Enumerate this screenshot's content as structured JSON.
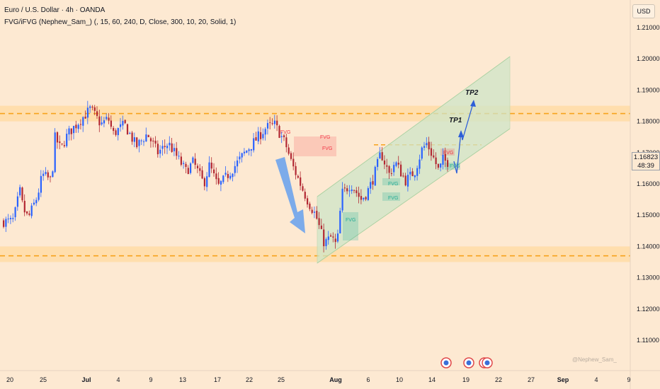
{
  "header": {
    "title": "Euro / U.S. Dollar · 4h · OANDA",
    "indicator": "FVG/iFVG (Nephew_Sam_) (, 15, 60, 240, D, Close, 300, 10, 20, Solid, 1)"
  },
  "currency_button": "USD",
  "price_label": {
    "price": "1.16823",
    "countdown": "48:39"
  },
  "watermark": "@Nephew_Sam_",
  "price_axis": {
    "ticks": [
      "1.21000",
      "1.20000",
      "1.19000",
      "1.18000",
      "1.17000",
      "1.16000",
      "1.15000",
      "1.14000",
      "1.13000",
      "1.12000",
      "1.11000"
    ],
    "values": [
      1.21,
      1.2,
      1.19,
      1.18,
      1.17,
      1.16,
      1.15,
      1.14,
      1.13,
      1.12,
      1.11
    ]
  },
  "time_axis": {
    "labels": [
      "20",
      "25",
      "Jul",
      "4",
      "9",
      "13",
      "17",
      "22",
      "25",
      "Aug",
      "6",
      "10",
      "14",
      "19",
      "22",
      "27",
      "Sep",
      "4",
      "9"
    ]
  },
  "annotations": {
    "fvg_label": "FVG",
    "tp1": "TP1",
    "tp2": "TP2"
  },
  "colors": {
    "background": "#fde9d2",
    "bull_candle": "#2962ff",
    "bear_candle": "#b22833",
    "zone": "#ffd9a0",
    "zone_line": "#f7a21b",
    "channel": "#cfe6c8",
    "fvg_bull": "#22ab94",
    "fvg_bear": "#f23645",
    "arrow": "#5b9bf0"
  },
  "chart_data": {
    "type": "candlestick",
    "symbol": "Euro / U.S. Dollar",
    "timeframe": "4h",
    "y_range": [
      1.105,
      1.215
    ],
    "path": [
      [
        1.148,
        20
      ],
      [
        1.152,
        25
      ],
      [
        1.158,
        30
      ],
      [
        1.152,
        35
      ],
      [
        1.149,
        42
      ],
      [
        1.156,
        55
      ],
      [
        1.163,
        62
      ],
      [
        1.161,
        75
      ],
      [
        1.175,
        80
      ],
      [
        1.171,
        88
      ],
      [
        1.176,
        98
      ],
      [
        1.182,
        122
      ],
      [
        1.184,
        130
      ],
      [
        1.179,
        145
      ],
      [
        1.181,
        155
      ],
      [
        1.176,
        162
      ],
      [
        1.179,
        178
      ],
      [
        1.172,
        195
      ],
      [
        1.176,
        210
      ],
      [
        1.17,
        225
      ],
      [
        1.173,
        240
      ],
      [
        1.164,
        265
      ],
      [
        1.167,
        275
      ],
      [
        1.16,
        290
      ],
      [
        1.166,
        298
      ],
      [
        1.159,
        310
      ],
      [
        1.164,
        328
      ],
      [
        1.17,
        348
      ],
      [
        1.178,
        378
      ],
      [
        1.179,
        390
      ],
      [
        1.173,
        405
      ],
      [
        1.166,
        415
      ],
      [
        1.157,
        432
      ],
      [
        1.154,
        438
      ],
      [
        1.15,
        448
      ],
      [
        1.141,
        460
      ],
      [
        1.143,
        470
      ],
      [
        1.14,
        478
      ],
      [
        1.157,
        485
      ],
      [
        1.16,
        498
      ],
      [
        1.155,
        512
      ],
      [
        1.157,
        520
      ],
      [
        1.161,
        528
      ],
      [
        1.166,
        535
      ],
      [
        1.17,
        540
      ],
      [
        1.163,
        552
      ],
      [
        1.167,
        560
      ],
      [
        1.161,
        575
      ],
      [
        1.164,
        588
      ],
      [
        1.171,
        598
      ],
      [
        1.173,
        605
      ],
      [
        1.168,
        615
      ],
      [
        1.164,
        622
      ],
      [
        1.168,
        628
      ],
      [
        1.167,
        632
      ]
    ],
    "levels": {
      "resistance_zone": [
        1.18,
        1.185
      ],
      "resistance_line": 1.1825,
      "support_zone": [
        1.135,
        1.14
      ],
      "support_line": 1.137,
      "breakout_line": 1.1725
    },
    "targets": {
      "TP1": 1.178,
      "TP2": 1.188
    },
    "current_price": 1.16823
  }
}
